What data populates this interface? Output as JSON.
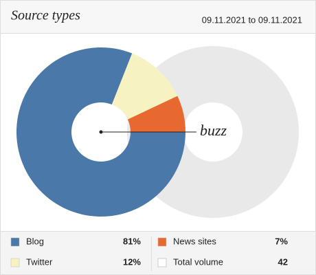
{
  "chart_data": {
    "type": "pie",
    "title": "Source types",
    "subtitle": "09.11.2021 to 09.11.2021",
    "center_label": "buzz",
    "categories": [
      "Blog",
      "Twitter",
      "News sites"
    ],
    "values": [
      81,
      12,
      7
    ],
    "value_labels": [
      "81%",
      "12%",
      "7%"
    ],
    "colors": [
      "#4a78a8",
      "#f6f2c2",
      "#e8692f"
    ],
    "total": {
      "name": "Total volume",
      "value": 42,
      "color": "#e9e9e9"
    }
  }
}
